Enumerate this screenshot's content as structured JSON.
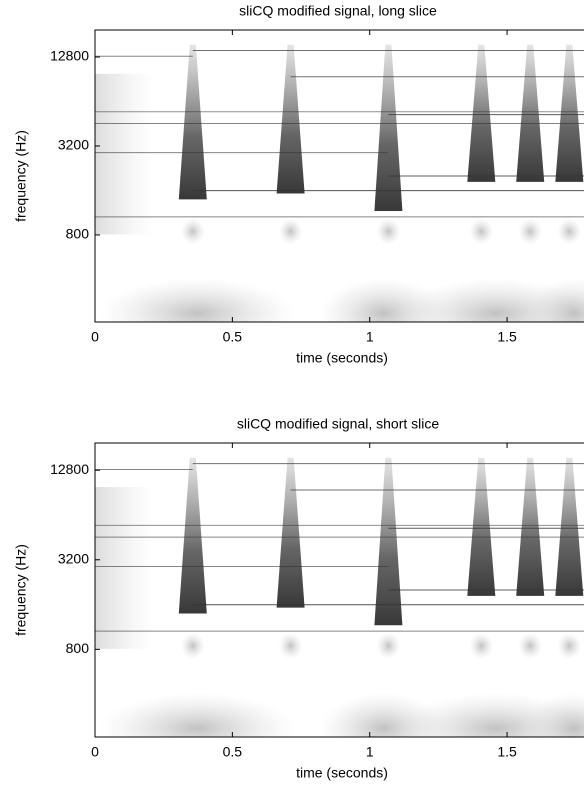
{
  "chart_data": [
    {
      "type": "spectrogram",
      "title": "sliCQ modified signal, long slice",
      "x_label": "time (seconds)",
      "y_label": "frequency (Hz)",
      "xlim": [
        0,
        1.78
      ],
      "xticks": [
        0,
        0.5,
        1,
        1.5
      ],
      "ylim": [
        206,
        19500
      ],
      "yticks": [
        800,
        3200,
        12800
      ],
      "y_scale": "log"
    },
    {
      "type": "spectrogram",
      "title": "sliCQ modified signal, short slice",
      "x_label": "time (seconds)",
      "y_label": "frequency (Hz)",
      "xlim": [
        0,
        1.78
      ],
      "xticks": [
        0,
        0.5,
        1,
        1.5
      ],
      "ylim": [
        206,
        19500
      ],
      "yticks": [
        800,
        3200,
        12800
      ],
      "y_scale": "log"
    }
  ]
}
